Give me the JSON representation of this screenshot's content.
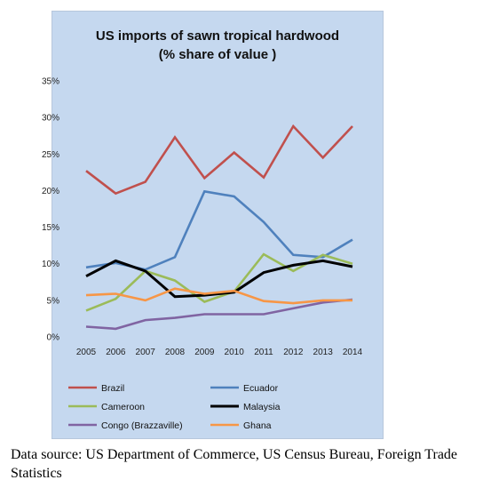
{
  "chart_data": {
    "type": "line",
    "title": "US imports of sawn tropical hardwood",
    "subtitle": "(% share of value )",
    "xlabel": "",
    "ylabel": "",
    "x": [
      "2005",
      "2006",
      "2007",
      "2008",
      "2009",
      "2010",
      "2011",
      "2012",
      "2013",
      "2014"
    ],
    "ylim": [
      0,
      35
    ],
    "y_ticks": [
      "0%",
      "5%",
      "10%",
      "15%",
      "20%",
      "25%",
      "30%",
      "35%"
    ],
    "grid": false,
    "legend_position": "bottom",
    "series": [
      {
        "name": "Brazil",
        "color": "#c0504d",
        "values": [
          22.7,
          19.6,
          21.2,
          27.3,
          21.7,
          25.2,
          21.8,
          28.8,
          24.5,
          28.8
        ]
      },
      {
        "name": "Ecuador",
        "color": "#4f81bd",
        "values": [
          9.5,
          10.1,
          9.2,
          10.9,
          19.9,
          19.2,
          15.7,
          11.2,
          10.9,
          13.3
        ]
      },
      {
        "name": "Cameroon",
        "color": "#9bbb59",
        "values": [
          3.6,
          5.2,
          9.0,
          7.7,
          4.8,
          6.2,
          11.3,
          9.0,
          11.2,
          10.0
        ]
      },
      {
        "name": "Malaysia",
        "color": "#000000",
        "values": [
          8.3,
          10.4,
          9.0,
          5.5,
          5.7,
          6.1,
          8.8,
          9.8,
          10.4,
          9.6
        ]
      },
      {
        "name": "Congo (Brazzaville)",
        "color": "#8064a2",
        "values": [
          1.4,
          1.1,
          2.3,
          2.6,
          3.1,
          3.1,
          3.1,
          3.9,
          4.7,
          5.1
        ]
      },
      {
        "name": "Ghana",
        "color": "#f79646",
        "values": [
          5.7,
          5.9,
          5.0,
          6.6,
          5.9,
          6.3,
          4.9,
          4.6,
          5.0,
          5.0
        ]
      }
    ]
  },
  "source_note": "Data source: US Department of Commerce, US Census Bureau, Foreign Trade Statistics"
}
